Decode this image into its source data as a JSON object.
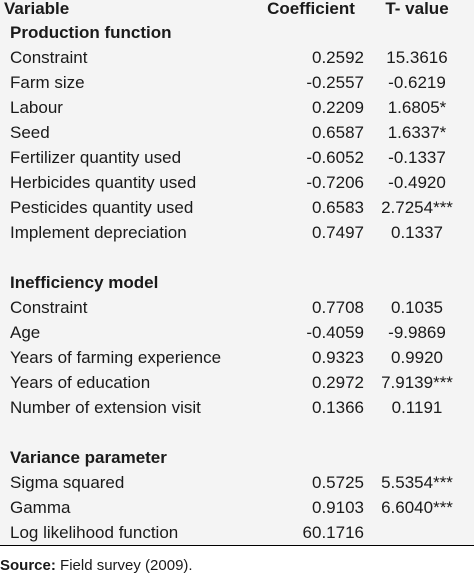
{
  "header": {
    "variable": "Variable",
    "coefficient": "Coefficient",
    "t_value": "T- value"
  },
  "sections": [
    {
      "title": "Production function",
      "rows": [
        {
          "label": "Constraint",
          "coef": "0.2592",
          "t": "15.3616"
        },
        {
          "label": "Farm size",
          "coef": "-0.2557",
          "t": "-0.6219"
        },
        {
          "label": "Labour",
          "coef": "0.2209",
          "t": "1.6805*"
        },
        {
          "label": "Seed",
          "coef": "0.6587",
          "t": "1.6337*"
        },
        {
          "label": "Fertilizer quantity used",
          "coef": "-0.6052",
          "t": "-0.1337"
        },
        {
          "label": "Herbicides quantity used",
          "coef": "-0.7206",
          "t": "-0.4920"
        },
        {
          "label": "Pesticides quantity used",
          "coef": "0.6583",
          "t": "2.7254***"
        },
        {
          "label": "Implement depreciation",
          "coef": "0.7497",
          "t": "0.1337"
        }
      ]
    },
    {
      "title": "Inefficiency model",
      "rows": [
        {
          "label": "Constraint",
          "coef": "0.7708",
          "t": "0.1035"
        },
        {
          "label": "Age",
          "coef": "-0.4059",
          "t": "-9.9869"
        },
        {
          "label": "Years of farming experience",
          "coef": "0.9323",
          "t": "0.9920"
        },
        {
          "label": "Years of education",
          "coef": "0.2972",
          "t": "7.9139***"
        },
        {
          "label": "Number of extension visit",
          "coef": "0.1366",
          "t": "0.1191"
        }
      ]
    },
    {
      "title": "Variance parameter",
      "rows": [
        {
          "label": "Sigma squared",
          "coef": "0.5725",
          "t": "5.5354***"
        },
        {
          "label": "Gamma",
          "coef": "0.9103",
          "t": "6.6040***"
        },
        {
          "label": "Log likelihood function",
          "coef": "60.1716",
          "t": ""
        }
      ]
    }
  ],
  "source": {
    "label": "Source:",
    "text": "Field survey (2009)."
  }
}
